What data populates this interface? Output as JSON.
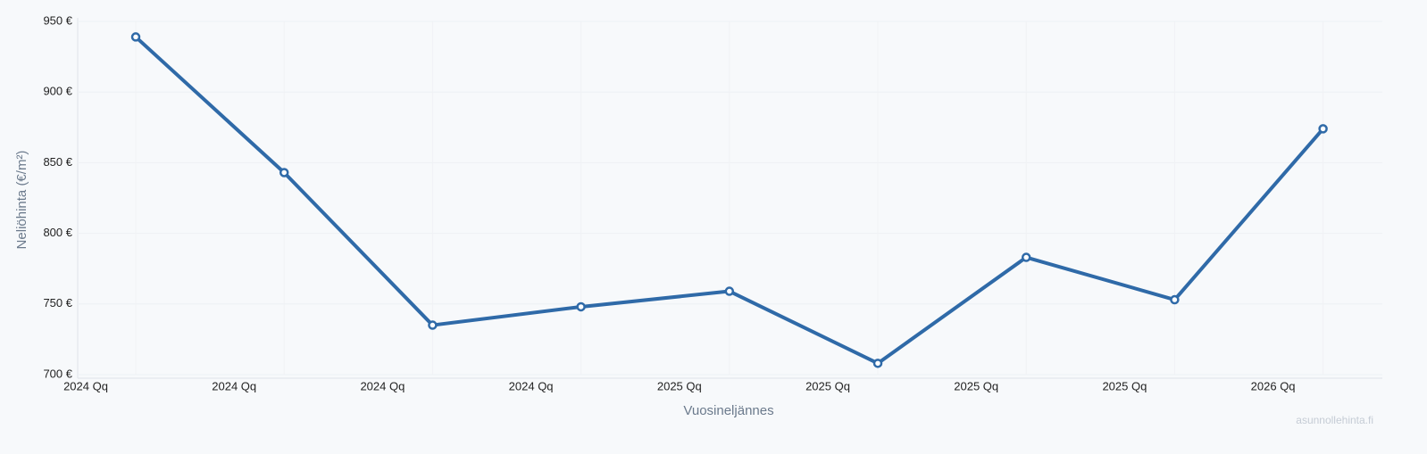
{
  "chart_data": {
    "type": "line",
    "x_label": "Vuosineljännes",
    "y_label": "Neliöhinta (€/m²)",
    "watermark": "asunnollehinta.fi",
    "categories": [
      "2024 Qq",
      "2024 Qq",
      "2024 Qq",
      "2024 Qq",
      "2025 Qq",
      "2025 Qq",
      "2025 Qq",
      "2025 Qq",
      "2026 Qq"
    ],
    "series": [
      {
        "color": "#2f6aa8",
        "values": [
          939,
          843,
          735,
          748,
          759,
          708,
          783,
          753,
          874
        ]
      }
    ],
    "ylim": [
      700,
      950
    ],
    "yticks": [
      {
        "value": 700,
        "label": "700 €"
      },
      {
        "value": 750,
        "label": "750 €"
      },
      {
        "value": 800,
        "label": "800 €"
      },
      {
        "value": 850,
        "label": "850 €"
      },
      {
        "value": 900,
        "label": "900 €"
      },
      {
        "value": 950,
        "label": "950 €"
      }
    ],
    "grid": true
  }
}
